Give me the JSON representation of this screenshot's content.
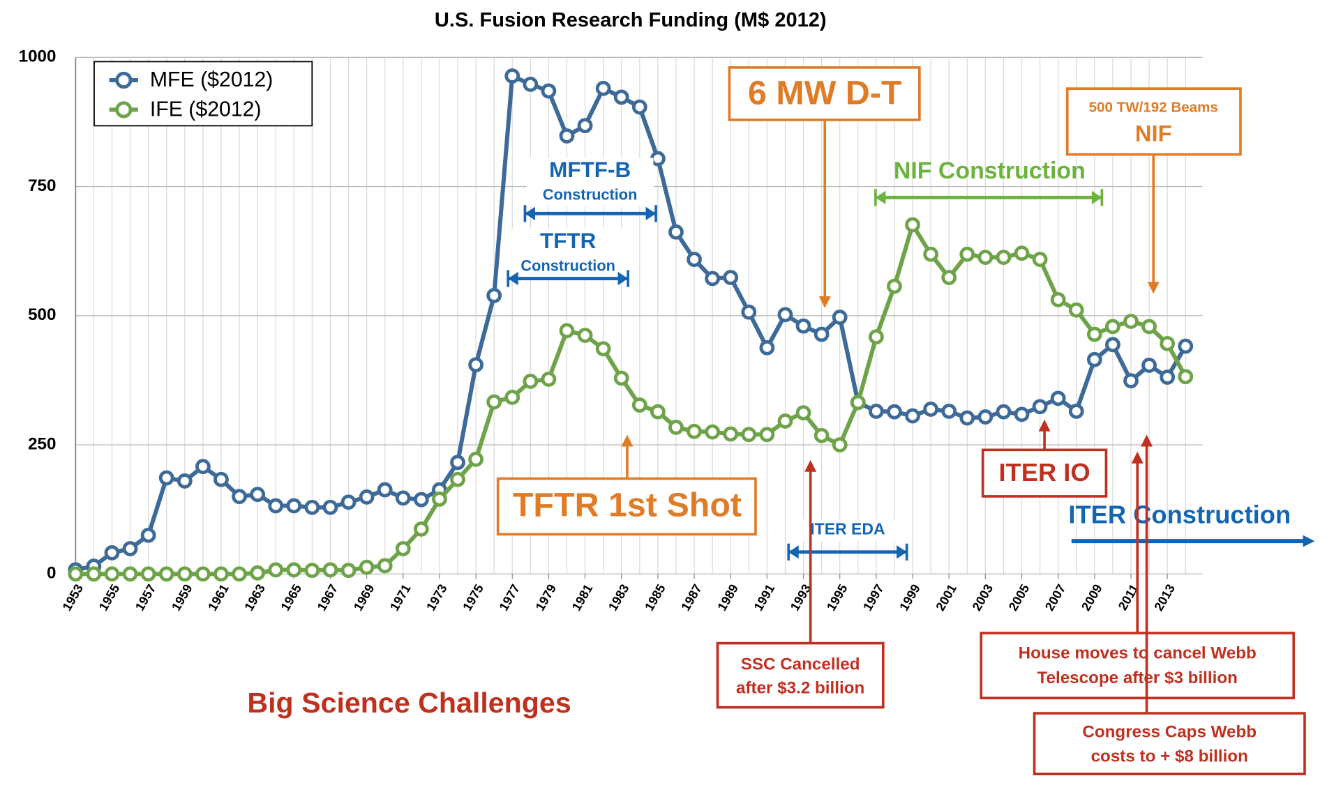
{
  "chart_data": {
    "type": "line",
    "title": "U.S. Fusion Research Funding (M$ 2012)",
    "x": [
      1953,
      1954,
      1955,
      1956,
      1957,
      1958,
      1959,
      1960,
      1961,
      1962,
      1963,
      1964,
      1965,
      1966,
      1967,
      1968,
      1969,
      1970,
      1971,
      1972,
      1973,
      1974,
      1975,
      1976,
      1977,
      1978,
      1979,
      1980,
      1981,
      1982,
      1983,
      1984,
      1985,
      1986,
      1987,
      1988,
      1989,
      1990,
      1991,
      1992,
      1993,
      1994,
      1995,
      1996,
      1997,
      1998,
      1999,
      2000,
      2001,
      2002,
      2003,
      2004,
      2005,
      2006,
      2007,
      2008,
      2009,
      2010,
      2011,
      2012,
      2013,
      2014
    ],
    "xlim": [
      1953,
      2014
    ],
    "xticks": [
      1953,
      1955,
      1957,
      1959,
      1961,
      1963,
      1965,
      1967,
      1969,
      1971,
      1973,
      1975,
      1977,
      1979,
      1981,
      1983,
      1985,
      1987,
      1989,
      1991,
      1993,
      1995,
      1997,
      1999,
      2001,
      2003,
      2005,
      2007,
      2009,
      2011,
      2013
    ],
    "ylim": [
      0,
      1000
    ],
    "yticks": [
      0,
      250,
      500,
      750,
      1000
    ],
    "grid": true,
    "legend": "upper left",
    "series": [
      {
        "name": "MFE ($2012)",
        "color": "#3d6a98",
        "values": [
          8,
          15,
          41,
          49,
          75,
          186,
          180,
          208,
          183,
          150,
          154,
          132,
          132,
          129,
          129,
          139,
          149,
          163,
          147,
          144,
          163,
          216,
          405,
          539,
          964,
          948,
          935,
          848,
          868,
          940,
          923,
          904,
          804,
          662,
          609,
          572,
          574,
          507,
          438,
          502,
          480,
          464,
          497,
          332,
          315,
          314,
          306,
          319,
          315,
          302,
          304,
          314,
          309,
          324,
          340,
          315,
          415,
          444,
          374,
          404,
          381,
          441
        ]
      },
      {
        "name": "IFE ($2012)",
        "color": "#6fa34a",
        "values": [
          0,
          0,
          0,
          0,
          0,
          0,
          0,
          0,
          0,
          0,
          2,
          8,
          8,
          7,
          8,
          7,
          13,
          16,
          49,
          87,
          145,
          183,
          222,
          333,
          342,
          373,
          377,
          471,
          462,
          436,
          379,
          327,
          314,
          284,
          276,
          275,
          271,
          270,
          270,
          296,
          312,
          268,
          250,
          332,
          459,
          557,
          676,
          619,
          574,
          619,
          613,
          613,
          621,
          609,
          531,
          511,
          464,
          479,
          489,
          479,
          446,
          382
        ]
      }
    ],
    "annotations": [
      {
        "lines": [
          "6 MW D-T"
        ]
      },
      {
        "lines": [
          "500 TW/192 Beams",
          "NIF"
        ]
      },
      {
        "lines": [
          "MFTF-B",
          "Construction"
        ]
      },
      {
        "lines": [
          "TFTR",
          "Construction"
        ]
      },
      {
        "lines": [
          "NIF Construction"
        ]
      },
      {
        "lines": [
          "TFTR 1st Shot"
        ]
      },
      {
        "lines": [
          "ITER EDA"
        ]
      },
      {
        "lines": [
          "ITER IO"
        ]
      },
      {
        "lines": [
          "ITER Construction"
        ]
      },
      {
        "lines": [
          "SSC Cancelled",
          "after $3.2 billion"
        ]
      },
      {
        "lines": [
          "House moves to cancel Webb",
          "Telescope after $3 billion"
        ]
      },
      {
        "lines": [
          "Congress Caps Webb",
          "costs to + $8 billion"
        ]
      },
      {
        "lines": [
          "Big Science Challenges"
        ]
      }
    ]
  }
}
